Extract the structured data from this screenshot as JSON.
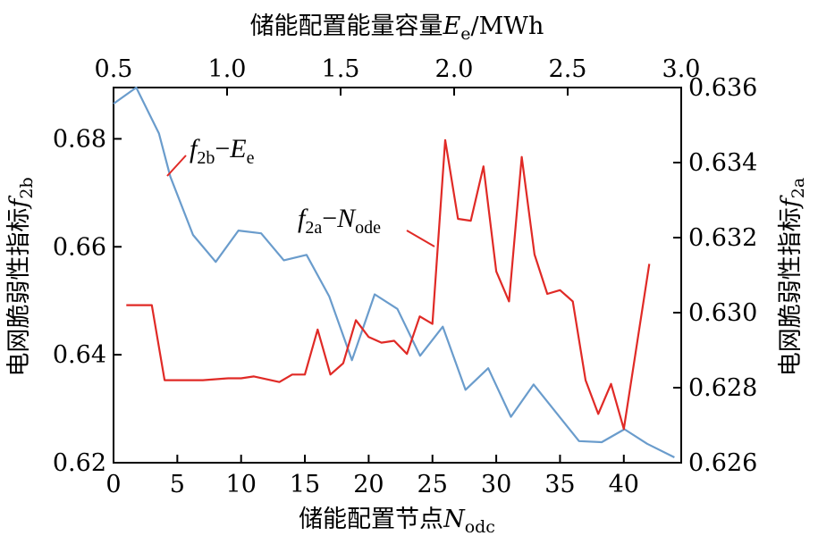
{
  "chart_data": {
    "type": "line",
    "axes": {
      "bottom": {
        "label": {
          "prefix": "储能配置节点",
          "var": "N",
          "sub": "odc"
        },
        "range": [
          0,
          44.5
        ],
        "ticks": [
          0,
          5,
          10,
          15,
          20,
          25,
          30,
          35,
          40
        ],
        "tick_labels": [
          "0",
          "5",
          "10",
          "15",
          "20",
          "25",
          "30",
          "35",
          "40"
        ]
      },
      "top": {
        "label": {
          "prefix": "储能配置能量容量",
          "var": "E",
          "sub": "e",
          "suffix": "/MWh"
        },
        "range": [
          0.5,
          3.0
        ],
        "ticks": [
          0.5,
          1.0,
          1.5,
          2.0,
          2.5,
          3.0
        ],
        "tick_labels": [
          "0.5",
          "1.0",
          "1.5",
          "2.0",
          "2.5",
          "3.0"
        ]
      },
      "left": {
        "label": {
          "prefix": "电网脆弱性指标",
          "var": "f",
          "sub": "2b"
        },
        "range": [
          0.62,
          0.6895
        ],
        "ticks": [
          0.62,
          0.64,
          0.66,
          0.68
        ],
        "tick_labels": [
          "0.62",
          "0.64",
          "0.66",
          "0.68"
        ]
      },
      "right": {
        "label": {
          "prefix": "电网脆弱性指标",
          "var": "f",
          "sub": "2a"
        },
        "range": [
          0.626,
          0.636
        ],
        "ticks": [
          0.626,
          0.628,
          0.63,
          0.632,
          0.634,
          0.636
        ],
        "tick_labels": [
          "0.626",
          "0.628",
          "0.630",
          "0.632",
          "0.634",
          "0.636"
        ]
      }
    },
    "series": [
      {
        "label": {
          "var": "f",
          "sub": "2b",
          "dash": "−",
          "var2": "E",
          "sub2": "e"
        },
        "color": "#6a9ccc",
        "x_axis": "top",
        "y_axis": "left",
        "points": [
          [
            0.5,
            0.6865
          ],
          [
            0.6,
            0.6895
          ],
          [
            0.7,
            0.681
          ],
          [
            0.75,
            0.673
          ],
          [
            0.85,
            0.6622
          ],
          [
            0.95,
            0.6572
          ],
          [
            1.05,
            0.663
          ],
          [
            1.15,
            0.6625
          ],
          [
            1.25,
            0.6575
          ],
          [
            1.35,
            0.6585
          ],
          [
            1.45,
            0.6508
          ],
          [
            1.55,
            0.639
          ],
          [
            1.65,
            0.6512
          ],
          [
            1.75,
            0.6485
          ],
          [
            1.85,
            0.6398
          ],
          [
            1.95,
            0.6452
          ],
          [
            2.05,
            0.6335
          ],
          [
            2.15,
            0.6375
          ],
          [
            2.25,
            0.6285
          ],
          [
            2.35,
            0.6345
          ],
          [
            2.55,
            0.624
          ],
          [
            2.65,
            0.6238
          ],
          [
            2.75,
            0.6262
          ],
          [
            2.85,
            0.6235
          ],
          [
            2.97,
            0.621
          ]
        ]
      },
      {
        "label": {
          "var": "f",
          "sub": "2a",
          "dash": "−",
          "var2": "N",
          "sub2": "ode"
        },
        "color": "#e02a26",
        "x_axis": "bottom",
        "y_axis": "right",
        "points": [
          [
            1,
            0.6302
          ],
          [
            3,
            0.6302
          ],
          [
            4,
            0.6282
          ],
          [
            7,
            0.6282
          ],
          [
            9,
            0.62825
          ],
          [
            10,
            0.62825
          ],
          [
            11,
            0.6283
          ],
          [
            13,
            0.62815
          ],
          [
            14,
            0.62835
          ],
          [
            15,
            0.62835
          ],
          [
            16,
            0.62955
          ],
          [
            17,
            0.62835
          ],
          [
            18,
            0.62865
          ],
          [
            19,
            0.6298
          ],
          [
            20,
            0.62935
          ],
          [
            21,
            0.6292
          ],
          [
            22,
            0.62925
          ],
          [
            23,
            0.6289
          ],
          [
            24,
            0.6299
          ],
          [
            25,
            0.6297
          ],
          [
            26,
            0.6346
          ],
          [
            27,
            0.6325
          ],
          [
            28,
            0.63245
          ],
          [
            29,
            0.6339
          ],
          [
            30,
            0.6311
          ],
          [
            31,
            0.6303
          ],
          [
            32,
            0.63415
          ],
          [
            33,
            0.63155
          ],
          [
            34,
            0.6305
          ],
          [
            35,
            0.6306
          ],
          [
            36,
            0.6303
          ],
          [
            37,
            0.6282
          ],
          [
            38,
            0.6273
          ],
          [
            39,
            0.6281
          ],
          [
            40,
            0.6269
          ],
          [
            42,
            0.6313
          ]
        ]
      }
    ],
    "grid": false,
    "legend": "inline annotations"
  }
}
